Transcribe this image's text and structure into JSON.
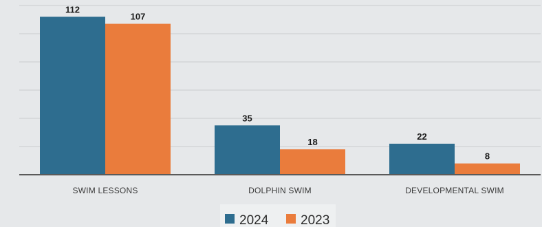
{
  "chart_data": {
    "type": "bar",
    "categories": [
      "SWIM LESSONS",
      "DOLPHIN SWIM",
      "DEVELOPMENTAL SWIM"
    ],
    "series": [
      {
        "name": "2024",
        "values": [
          112,
          35,
          22
        ],
        "color": "#2e6d8f"
      },
      {
        "name": "2023",
        "values": [
          107,
          18,
          8
        ],
        "color": "#ea7c3c"
      }
    ],
    "ylim": [
      0,
      120
    ],
    "grid": true,
    "legend": "bottom"
  }
}
